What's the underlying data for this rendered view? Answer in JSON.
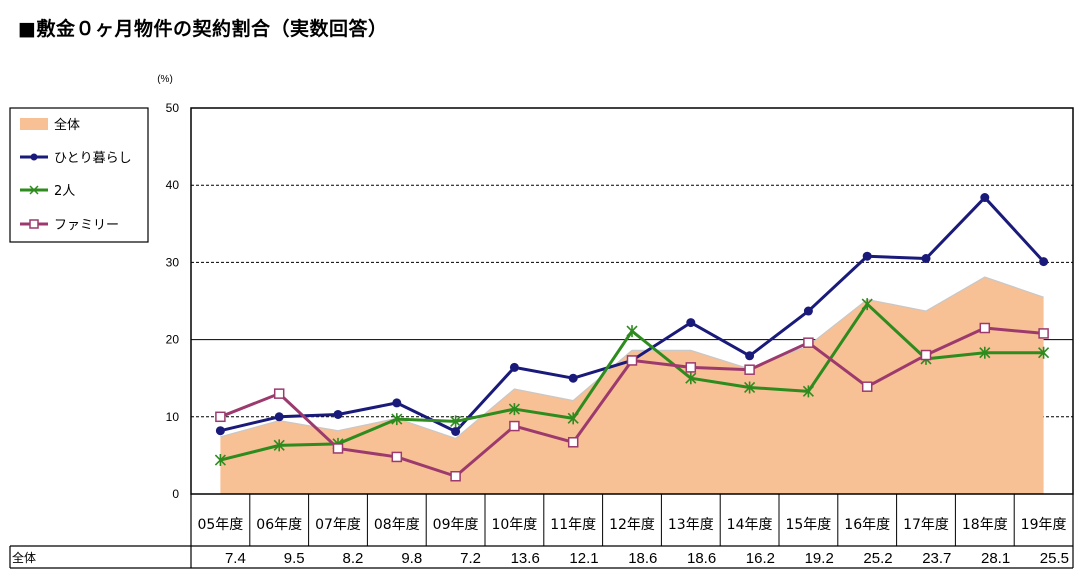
{
  "title": "■敷金０ヶ月物件の契約割合（実数回答）",
  "chart_data": {
    "type": "line",
    "unit": "(%)",
    "ylim": [
      0,
      50
    ],
    "yticks": [
      0,
      10,
      20,
      30,
      40,
      50
    ],
    "grid": "dashed horizontal at 10, 30, 40; solid at 20",
    "legend_position": "left-top",
    "categories": [
      "05年度",
      "06年度",
      "07年度",
      "08年度",
      "09年度",
      "10年度",
      "11年度",
      "12年度",
      "13年度",
      "14年度",
      "15年度",
      "16年度",
      "17年度",
      "18年度",
      "19年度"
    ],
    "series": [
      {
        "name": "全体",
        "style": "area",
        "color": "#f7c095",
        "values": [
          7.4,
          9.5,
          8.2,
          9.8,
          7.2,
          13.6,
          12.1,
          18.6,
          18.6,
          16.2,
          19.2,
          25.2,
          23.7,
          28.1,
          25.5
        ]
      },
      {
        "name": "ひとり暮らし",
        "style": "line",
        "marker": "circle",
        "color": "#1a1a7a",
        "values": [
          8.2,
          10.0,
          10.3,
          11.8,
          8.1,
          16.4,
          15.0,
          17.3,
          22.2,
          17.9,
          23.7,
          30.8,
          30.5,
          38.4,
          30.1
        ]
      },
      {
        "name": "2人",
        "style": "line",
        "marker": "x",
        "color": "#2e8b1e",
        "values": [
          4.4,
          6.3,
          6.5,
          9.7,
          9.4,
          11.0,
          9.8,
          21.1,
          15.0,
          13.8,
          13.3,
          24.6,
          17.5,
          18.3,
          18.3
        ]
      },
      {
        "name": "ファミリー",
        "style": "line",
        "marker": "square",
        "color": "#9c3a6e",
        "values": [
          10.0,
          13.0,
          5.9,
          4.8,
          2.3,
          8.8,
          6.7,
          17.3,
          16.4,
          16.1,
          19.6,
          13.9,
          18.0,
          21.5,
          20.8
        ]
      }
    ],
    "table": {
      "row_label": "全体",
      "values": [
        "7.4",
        "9.5",
        "8.2",
        "9.8",
        "7.2",
        "13.6",
        "12.1",
        "18.6",
        "18.6",
        "16.2",
        "19.2",
        "25.2",
        "23.7",
        "28.1",
        "25.5"
      ]
    }
  }
}
